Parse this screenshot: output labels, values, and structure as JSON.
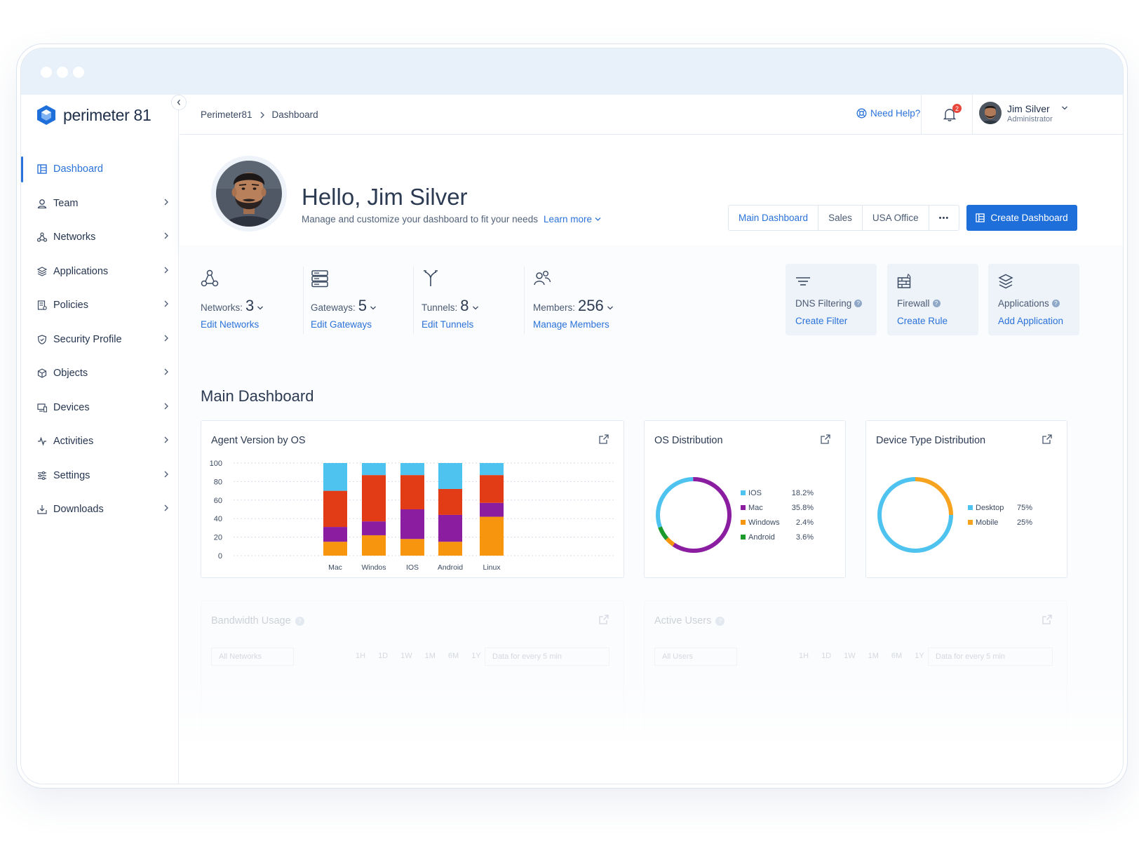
{
  "brand": {
    "name": "perimeter 81"
  },
  "sidebar": {
    "items": [
      {
        "label": "Dashboard",
        "icon": "dashboard-icon",
        "active": true
      },
      {
        "label": "Team",
        "icon": "user-icon"
      },
      {
        "label": "Networks",
        "icon": "network-icon"
      },
      {
        "label": "Applications",
        "icon": "layers-icon"
      },
      {
        "label": "Policies",
        "icon": "policy-icon"
      },
      {
        "label": "Security Profile",
        "icon": "shield-icon"
      },
      {
        "label": "Objects",
        "icon": "cube-icon"
      },
      {
        "label": "Devices",
        "icon": "device-icon"
      },
      {
        "label": "Activities",
        "icon": "activity-icon"
      },
      {
        "label": "Settings",
        "icon": "sliders-icon"
      },
      {
        "label": "Downloads",
        "icon": "download-icon"
      }
    ]
  },
  "topbar": {
    "breadcrumb": [
      "Perimeter81",
      "Dashboard"
    ],
    "help": "Need Help?",
    "notifications": "2",
    "user_name": "Jim Silver",
    "user_role": "Administrator"
  },
  "hero": {
    "greeting": "Hello, Jim Silver",
    "subtitle": "Manage and customize your dashboard to fit your needs",
    "learn_more": "Learn more",
    "tabs": [
      "Main Dashboard",
      "Sales",
      "USA Office"
    ],
    "more": "•••",
    "create_button": "Create Dashboard"
  },
  "stats": [
    {
      "label": "Networks:",
      "value": "3",
      "link": "Edit Networks",
      "icon": "network-icon"
    },
    {
      "label": "Gateways:",
      "value": "5",
      "link": "Edit Gateways",
      "icon": "server-icon"
    },
    {
      "label": "Tunnels:",
      "value": "8",
      "link": "Edit Tunnels",
      "icon": "tunnel-icon"
    },
    {
      "label": "Members:",
      "value": "256",
      "link": "Manage Members",
      "icon": "members-icon"
    }
  ],
  "quick_cards": [
    {
      "title": "DNS Filtering",
      "link": "Create Filter",
      "icon": "filter-icon"
    },
    {
      "title": "Firewall",
      "link": "Create Rule",
      "icon": "firewall-icon"
    },
    {
      "title": "Applications",
      "link": "Add Application",
      "icon": "layers-icon"
    }
  ],
  "main": {
    "section_title": "Main Dashboard"
  },
  "colors": {
    "accent": "#2a72d9",
    "ios": "#4fc3ef",
    "mac": "#8b1ea0",
    "windows": "#f7950f",
    "android": "#1c9a2c",
    "red": "#e23c16",
    "mobile": "#f7a31f"
  },
  "widgets": {
    "agent": {
      "title": "Agent Version by OS"
    },
    "os": {
      "title": "OS Distribution",
      "legend": [
        {
          "label": "IOS",
          "value": "18.2%",
          "color": "#4fc3ef"
        },
        {
          "label": "Mac",
          "value": "35.8%",
          "color": "#8b1ea0"
        },
        {
          "label": "Windows",
          "value": "2.4%",
          "color": "#f7950f"
        },
        {
          "label": "Android",
          "value": "3.6%",
          "color": "#1c9a2c"
        }
      ]
    },
    "device": {
      "title": "Device Type Distribution",
      "legend": [
        {
          "label": "Desktop",
          "value": "75%",
          "color": "#4fc3ef"
        },
        {
          "label": "Mobile",
          "value": "25%",
          "color": "#f7a31f"
        }
      ]
    },
    "bandwidth": {
      "title": "Bandwidth Usage",
      "filter": "All Networks",
      "ranges": [
        "1H",
        "1D",
        "1W",
        "1M",
        "6M",
        "1Y"
      ],
      "interval": "Data for every 5 min"
    },
    "active_users": {
      "title": "Active Users",
      "filter": "All Users",
      "ranges": [
        "1H",
        "1D",
        "1W",
        "1M",
        "6M",
        "1Y"
      ],
      "interval": "Data for every 5 min"
    }
  },
  "chart_data": [
    {
      "type": "bar",
      "stacked": true,
      "categories": [
        "Mac",
        "Windos",
        "IOS",
        "Android",
        "Linux"
      ],
      "ylim": [
        0,
        100
      ],
      "yticks": [
        0,
        20,
        40,
        60,
        80,
        100
      ],
      "series": [
        {
          "color": "#f7950f",
          "values": [
            15,
            22,
            18,
            15,
            42
          ]
        },
        {
          "color": "#8b1ea0",
          "values": [
            16,
            15,
            32,
            29,
            15
          ]
        },
        {
          "color": "#e23c16",
          "values": [
            39,
            50,
            37,
            28,
            30
          ]
        },
        {
          "color": "#4fc3ef",
          "values": [
            30,
            13,
            13,
            28,
            13
          ]
        }
      ],
      "grid": true
    },
    {
      "type": "pie",
      "donut": true,
      "labels": [
        "IOS",
        "Mac",
        "Windows",
        "Android"
      ],
      "values": [
        18.2,
        35.8,
        2.4,
        3.6
      ]
    },
    {
      "type": "pie",
      "donut": true,
      "labels": [
        "Desktop",
        "Mobile"
      ],
      "values": [
        75,
        25
      ]
    }
  ]
}
